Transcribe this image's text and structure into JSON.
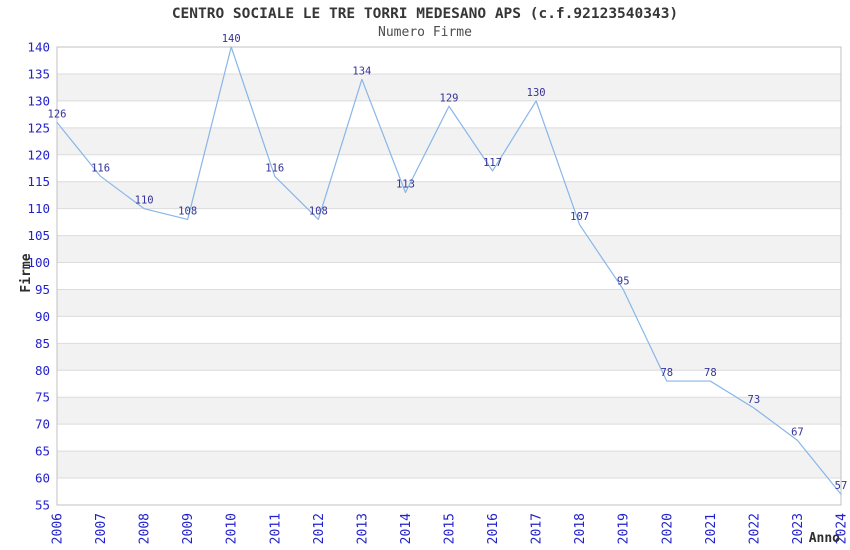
{
  "chart_data": {
    "type": "line",
    "title": "CENTRO SOCIALE LE TRE TORRI MEDESANO APS (c.f.92123540343)",
    "subtitle": "Numero Firme",
    "xlabel": "Anno",
    "ylabel": "Firme",
    "x": [
      2006,
      2007,
      2008,
      2009,
      2010,
      2011,
      2012,
      2013,
      2014,
      2015,
      2016,
      2017,
      2018,
      2019,
      2020,
      2021,
      2022,
      2023,
      2024
    ],
    "series": [
      {
        "name": "Numero Firme",
        "values": [
          126,
          116,
          110,
          108,
          140,
          116,
          108,
          134,
          113,
          129,
          117,
          130,
          107,
          95,
          78,
          78,
          73,
          67,
          57
        ]
      }
    ],
    "ylim": [
      55,
      140
    ],
    "ytick_step": 5,
    "grid": "horizontal-only",
    "banded_background": true,
    "legend": "none",
    "markers": "none",
    "colors": {
      "line": "#88b6e8",
      "tick_label": "#2222cc",
      "data_label": "#333399",
      "axis_label": "#2e2e2e",
      "title": "#363636",
      "subtitle": "#4d4d4d",
      "band": "#f2f2f2",
      "grid": "#dcdcdc",
      "border": "#c0c0c0",
      "background": "#ffffff"
    }
  }
}
